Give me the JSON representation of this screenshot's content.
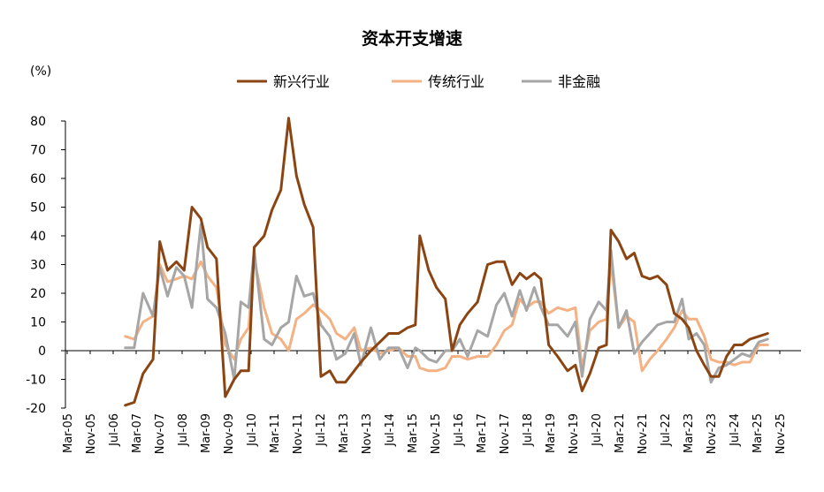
{
  "chart_data": {
    "type": "line",
    "title": "资本开支增速",
    "y_unit": "(%)",
    "xlabel": "",
    "ylabel": "",
    "ylim": [
      -20,
      80
    ],
    "yticks": [
      80,
      70,
      60,
      50,
      40,
      30,
      20,
      10,
      0,
      -10,
      -20
    ],
    "grid": false,
    "legend_position": "top-center",
    "x_ticks": [
      "Mar-05",
      "Nov-05",
      "Jul-06",
      "Mar-07",
      "Nov-07",
      "Jul-08",
      "Mar-09",
      "Nov-09",
      "Jul-10",
      "Mar-11",
      "Nov-11",
      "Jul-12",
      "Mar-13",
      "Nov-13",
      "Jul-14",
      "Mar-15",
      "Nov-15",
      "Jul-16",
      "Mar-17",
      "Nov-17",
      "Jul-18",
      "Mar-19",
      "Nov-19",
      "Jul-20",
      "Mar-21",
      "Nov-21",
      "Jul-22",
      "Mar-23",
      "Nov-23",
      "Jul-24",
      "Mar-25",
      "Nov-25"
    ],
    "x_range": [
      0,
      31.9
    ],
    "series": [
      {
        "name": "新兴行业",
        "color": "#8B4513",
        "points": [
          [
            1.5,
            -19
          ],
          [
            1.9,
            -18
          ],
          [
            2.3,
            -8
          ],
          [
            2.75,
            -3
          ],
          [
            3.05,
            38
          ],
          [
            3.4,
            28
          ],
          [
            3.8,
            31
          ],
          [
            4.15,
            28
          ],
          [
            4.5,
            50
          ],
          [
            4.9,
            46
          ],
          [
            5.2,
            36
          ],
          [
            5.6,
            32
          ],
          [
            6.0,
            -16
          ],
          [
            6.4,
            -10
          ],
          [
            6.7,
            -7
          ],
          [
            7.05,
            -7
          ],
          [
            7.3,
            36
          ],
          [
            7.75,
            40
          ],
          [
            8.1,
            49
          ],
          [
            8.5,
            56
          ],
          [
            8.85,
            81
          ],
          [
            9.2,
            61
          ],
          [
            9.55,
            51
          ],
          [
            9.95,
            43
          ],
          [
            10.3,
            -9
          ],
          [
            10.7,
            -7
          ],
          [
            11.0,
            -11
          ],
          [
            11.4,
            -11
          ],
          [
            11.8,
            -7
          ],
          [
            12.1,
            -4
          ],
          [
            12.55,
            0
          ],
          [
            12.95,
            3
          ],
          [
            13.35,
            6
          ],
          [
            13.8,
            6
          ],
          [
            14.2,
            8
          ],
          [
            14.55,
            9
          ],
          [
            14.75,
            40
          ],
          [
            15.15,
            28
          ],
          [
            15.5,
            22
          ],
          [
            15.9,
            18
          ],
          [
            16.2,
            0
          ],
          [
            16.55,
            9
          ],
          [
            16.9,
            13
          ],
          [
            17.35,
            17
          ],
          [
            17.8,
            30
          ],
          [
            18.2,
            31
          ],
          [
            18.55,
            31
          ],
          [
            18.9,
            23
          ],
          [
            19.25,
            27
          ],
          [
            19.55,
            25
          ],
          [
            19.9,
            27
          ],
          [
            20.2,
            25
          ],
          [
            20.55,
            2
          ],
          [
            20.95,
            -2
          ],
          [
            21.4,
            -7
          ],
          [
            21.75,
            -5
          ],
          [
            22.05,
            -14
          ],
          [
            22.4,
            -8
          ],
          [
            22.8,
            1
          ],
          [
            23.15,
            2
          ],
          [
            23.35,
            42
          ],
          [
            23.7,
            38
          ],
          [
            24.05,
            32
          ],
          [
            24.4,
            34
          ],
          [
            24.75,
            26
          ],
          [
            25.1,
            25
          ],
          [
            25.45,
            26
          ],
          [
            25.85,
            23
          ],
          [
            26.2,
            13
          ],
          [
            26.55,
            11
          ],
          [
            26.85,
            8
          ],
          [
            27.2,
            0
          ],
          [
            27.55,
            -5
          ],
          [
            27.85,
            -9
          ],
          [
            28.2,
            -9
          ],
          [
            28.55,
            -2
          ],
          [
            28.9,
            2
          ],
          [
            29.25,
            2
          ],
          [
            29.6,
            4
          ],
          [
            30.0,
            5
          ],
          [
            30.4,
            6
          ]
        ]
      },
      {
        "name": "传统行业",
        "color": "#F4B183",
        "points": [
          [
            1.5,
            5
          ],
          [
            1.9,
            4
          ],
          [
            2.3,
            10
          ],
          [
            2.75,
            12
          ],
          [
            3.05,
            30
          ],
          [
            3.4,
            24
          ],
          [
            3.8,
            25
          ],
          [
            4.15,
            26
          ],
          [
            4.5,
            25
          ],
          [
            4.9,
            31
          ],
          [
            5.2,
            26
          ],
          [
            5.6,
            22
          ],
          [
            6.0,
            2
          ],
          [
            6.4,
            -3
          ],
          [
            6.7,
            4
          ],
          [
            7.05,
            8
          ],
          [
            7.3,
            32
          ],
          [
            7.75,
            15
          ],
          [
            8.1,
            6
          ],
          [
            8.5,
            4
          ],
          [
            8.85,
            0
          ],
          [
            9.2,
            11
          ],
          [
            9.55,
            13
          ],
          [
            9.95,
            16
          ],
          [
            10.3,
            14
          ],
          [
            10.7,
            11
          ],
          [
            11.0,
            6
          ],
          [
            11.4,
            4
          ],
          [
            11.8,
            8
          ],
          [
            12.1,
            0
          ],
          [
            12.55,
            1
          ],
          [
            12.95,
            -1
          ],
          [
            13.35,
            0
          ],
          [
            13.8,
            1
          ],
          [
            14.2,
            -2
          ],
          [
            14.55,
            -2
          ],
          [
            14.75,
            -6
          ],
          [
            15.15,
            -7
          ],
          [
            15.5,
            -7
          ],
          [
            15.9,
            -6
          ],
          [
            16.2,
            -2
          ],
          [
            16.55,
            -2
          ],
          [
            16.9,
            -3
          ],
          [
            17.35,
            -2
          ],
          [
            17.8,
            -2
          ],
          [
            18.2,
            2
          ],
          [
            18.55,
            7
          ],
          [
            18.9,
            9
          ],
          [
            19.25,
            18
          ],
          [
            19.55,
            15
          ],
          [
            19.9,
            17
          ],
          [
            20.2,
            17
          ],
          [
            20.55,
            13
          ],
          [
            20.95,
            15
          ],
          [
            21.4,
            14
          ],
          [
            21.75,
            15
          ],
          [
            22.05,
            -6
          ],
          [
            22.4,
            7
          ],
          [
            22.8,
            10
          ],
          [
            23.15,
            11
          ],
          [
            23.35,
            31
          ],
          [
            23.7,
            8
          ],
          [
            24.05,
            12
          ],
          [
            24.4,
            10
          ],
          [
            24.75,
            -7
          ],
          [
            25.1,
            -3
          ],
          [
            25.45,
            0
          ],
          [
            25.85,
            4
          ],
          [
            26.2,
            8
          ],
          [
            26.55,
            14
          ],
          [
            26.85,
            11
          ],
          [
            27.2,
            11
          ],
          [
            27.55,
            5
          ],
          [
            27.85,
            -3
          ],
          [
            28.2,
            -4
          ],
          [
            28.55,
            -4
          ],
          [
            28.9,
            -5
          ],
          [
            29.25,
            -4
          ],
          [
            29.6,
            -4
          ],
          [
            30.0,
            2
          ],
          [
            30.4,
            2
          ]
        ]
      },
      {
        "name": "非金融",
        "color": "#A6A6A6",
        "points": [
          [
            1.5,
            1
          ],
          [
            1.9,
            1
          ],
          [
            2.3,
            20
          ],
          [
            2.75,
            12
          ],
          [
            3.05,
            29
          ],
          [
            3.4,
            19
          ],
          [
            3.8,
            29
          ],
          [
            4.15,
            26
          ],
          [
            4.5,
            15
          ],
          [
            4.9,
            44
          ],
          [
            5.2,
            18
          ],
          [
            5.6,
            15
          ],
          [
            6.0,
            6
          ],
          [
            6.4,
            -10
          ],
          [
            6.7,
            17
          ],
          [
            7.05,
            15
          ],
          [
            7.3,
            35
          ],
          [
            7.75,
            4
          ],
          [
            8.1,
            2
          ],
          [
            8.5,
            8
          ],
          [
            8.85,
            10
          ],
          [
            9.2,
            26
          ],
          [
            9.55,
            19
          ],
          [
            9.95,
            20
          ],
          [
            10.3,
            9
          ],
          [
            10.7,
            5
          ],
          [
            11.0,
            -3
          ],
          [
            11.4,
            -1
          ],
          [
            11.8,
            6
          ],
          [
            12.1,
            -5
          ],
          [
            12.55,
            8
          ],
          [
            12.95,
            -3
          ],
          [
            13.35,
            1
          ],
          [
            13.8,
            1
          ],
          [
            14.2,
            -6
          ],
          [
            14.55,
            1
          ],
          [
            14.75,
            0
          ],
          [
            15.15,
            -3
          ],
          [
            15.5,
            -4
          ],
          [
            15.9,
            0
          ],
          [
            16.2,
            0
          ],
          [
            16.55,
            4
          ],
          [
            16.9,
            -2
          ],
          [
            17.35,
            7
          ],
          [
            17.8,
            5
          ],
          [
            18.2,
            16
          ],
          [
            18.55,
            20
          ],
          [
            18.9,
            12
          ],
          [
            19.25,
            21
          ],
          [
            19.55,
            14
          ],
          [
            19.9,
            22
          ],
          [
            20.2,
            15
          ],
          [
            20.55,
            9
          ],
          [
            20.95,
            9
          ],
          [
            21.4,
            5
          ],
          [
            21.75,
            10
          ],
          [
            22.05,
            -9
          ],
          [
            22.4,
            11
          ],
          [
            22.8,
            17
          ],
          [
            23.15,
            14
          ],
          [
            23.35,
            35
          ],
          [
            23.7,
            8
          ],
          [
            24.05,
            14
          ],
          [
            24.4,
            -1
          ],
          [
            24.75,
            3
          ],
          [
            25.1,
            6
          ],
          [
            25.45,
            9
          ],
          [
            25.85,
            10
          ],
          [
            26.2,
            10
          ],
          [
            26.55,
            18
          ],
          [
            26.85,
            4
          ],
          [
            27.2,
            6
          ],
          [
            27.55,
            2
          ],
          [
            27.85,
            -11
          ],
          [
            28.2,
            -6
          ],
          [
            28.55,
            -5
          ],
          [
            28.9,
            -3
          ],
          [
            29.25,
            -1
          ],
          [
            29.6,
            -2
          ],
          [
            30.0,
            3
          ],
          [
            30.4,
            4
          ]
        ]
      }
    ]
  }
}
